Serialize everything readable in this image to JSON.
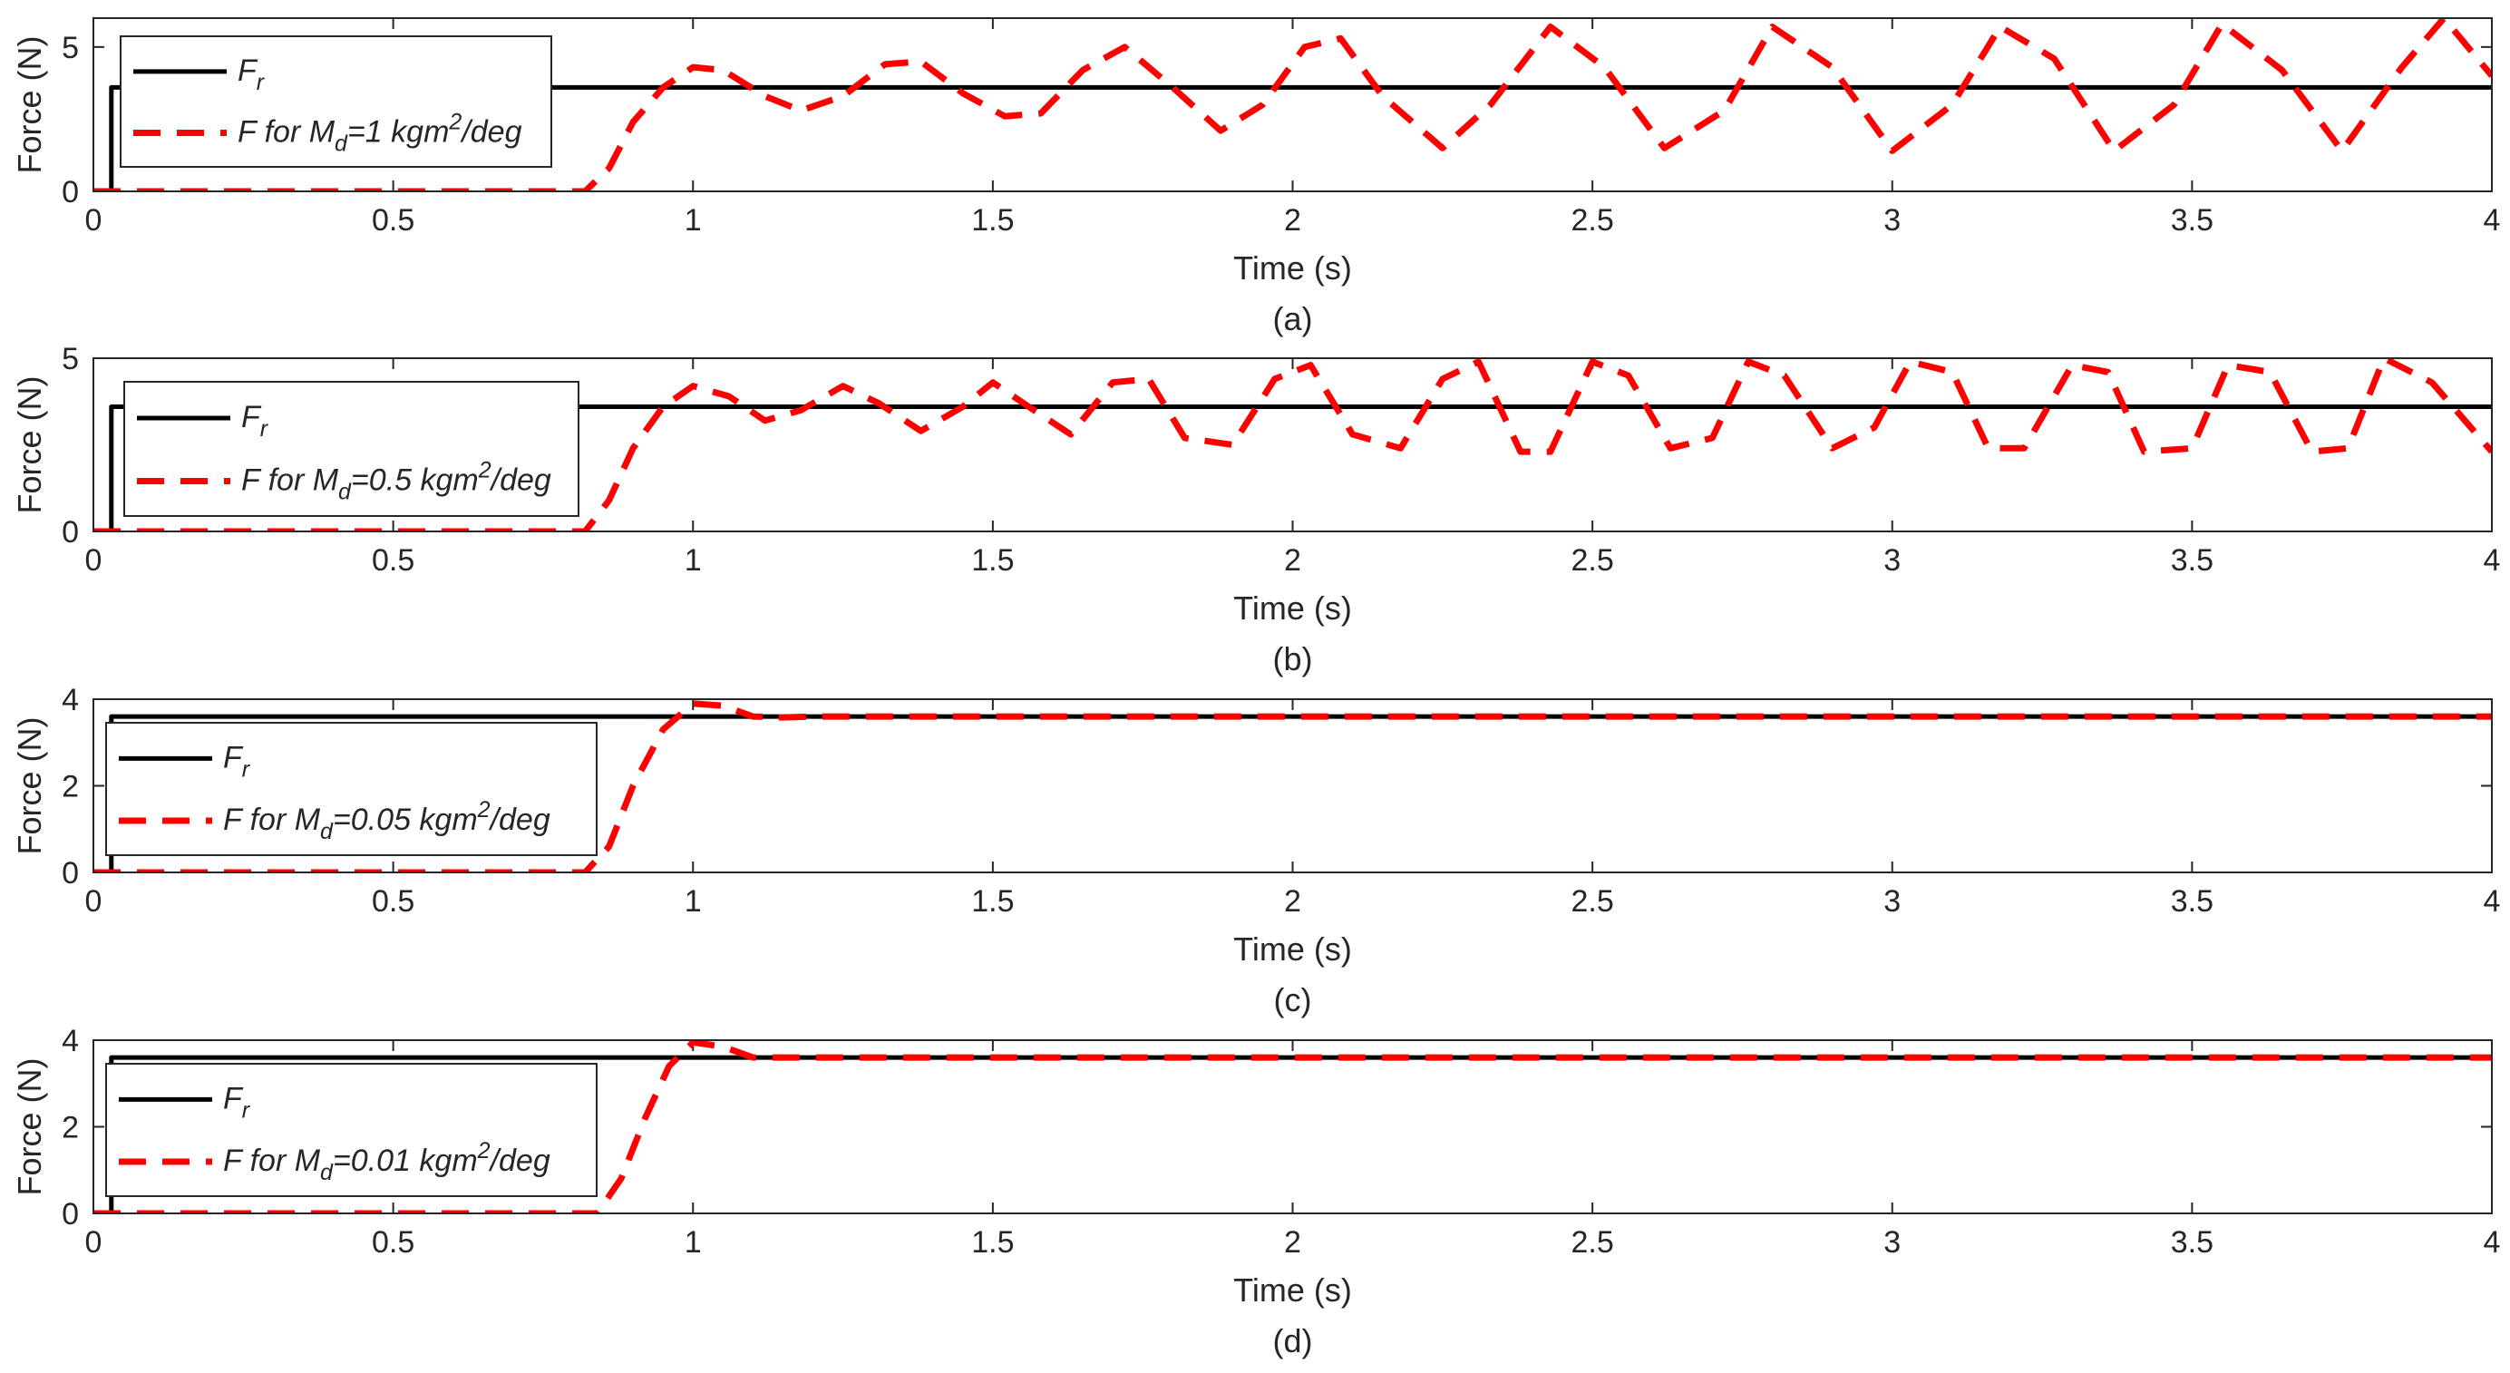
{
  "chart_data": [
    {
      "type": "line",
      "caption": "(a)",
      "xlabel": "Time (s)",
      "ylabel": "Force (N)",
      "xlim": [
        0,
        4
      ],
      "ylim": [
        0,
        6
      ],
      "xticks": [
        0,
        0.5,
        1,
        1.5,
        2,
        2.5,
        3,
        3.5,
        4
      ],
      "xtick_labels": [
        "0",
        "0.5",
        "1",
        "1.5",
        "2",
        "2.5",
        "3",
        "3.5",
        "4"
      ],
      "yticks": [
        0,
        5
      ],
      "ytick_labels": [
        "0",
        "5"
      ],
      "legend_position": "top-left",
      "series": [
        {
          "legend": {
            "main": "F",
            "sub": "r"
          },
          "style": "solid",
          "color": "#000000",
          "x": [
            0,
            0.03,
            0.03,
            4
          ],
          "y": [
            0,
            0,
            3.6,
            3.6
          ]
        },
        {
          "legend": {
            "pre": "F for M",
            "sub": "d",
            "mid": "=1 kgm",
            "sup": "2",
            "post": "/deg"
          },
          "style": "dashed",
          "color": "#ff0000",
          "x": [
            0,
            0.82,
            0.86,
            0.9,
            0.95,
            1.0,
            1.05,
            1.12,
            1.18,
            1.25,
            1.32,
            1.38,
            1.45,
            1.52,
            1.58,
            1.65,
            1.72,
            1.8,
            1.88,
            1.95,
            2.02,
            2.08,
            2.15,
            2.25,
            2.33,
            2.43,
            2.52,
            2.62,
            2.72,
            2.8,
            2.9,
            3.0,
            3.1,
            3.18,
            3.27,
            3.37,
            3.47,
            3.55,
            3.65,
            3.75,
            3.85,
            3.92,
            4.0
          ],
          "y": [
            0,
            0,
            0.8,
            2.4,
            3.6,
            4.3,
            4.2,
            3.3,
            2.8,
            3.3,
            4.4,
            4.5,
            3.4,
            2.6,
            2.7,
            4.2,
            5.0,
            3.6,
            2.1,
            3.0,
            5.0,
            5.3,
            3.3,
            1.5,
            3.0,
            5.7,
            4.3,
            1.5,
            2.8,
            5.7,
            4.3,
            1.4,
            3.0,
            5.7,
            4.6,
            1.4,
            3.0,
            5.8,
            4.2,
            1.4,
            4.3,
            6.0,
            4.0
          ]
        }
      ]
    },
    {
      "type": "line",
      "caption": "(b)",
      "xlabel": "Time (s)",
      "ylabel": "Force (N)",
      "xlim": [
        0,
        4
      ],
      "ylim": [
        0,
        5
      ],
      "xticks": [
        0,
        0.5,
        1,
        1.5,
        2,
        2.5,
        3,
        3.5,
        4
      ],
      "xtick_labels": [
        "0",
        "0.5",
        "1",
        "1.5",
        "2",
        "2.5",
        "3",
        "3.5",
        "4"
      ],
      "yticks": [
        0,
        5
      ],
      "ytick_labels": [
        "0",
        "5"
      ],
      "legend_position": "top-left",
      "series": [
        {
          "legend": {
            "main": "F",
            "sub": "r"
          },
          "style": "solid",
          "color": "#000000",
          "x": [
            0,
            0.03,
            0.03,
            4
          ],
          "y": [
            0,
            0,
            3.6,
            3.6
          ]
        },
        {
          "legend": {
            "pre": "F for M",
            "sub": "d",
            "mid": "=0.5 kgm",
            "sup": "2",
            "post": "/deg"
          },
          "style": "dashed",
          "color": "#ff0000",
          "x": [
            0,
            0.82,
            0.86,
            0.9,
            0.95,
            1.0,
            1.06,
            1.12,
            1.18,
            1.25,
            1.31,
            1.38,
            1.45,
            1.5,
            1.56,
            1.63,
            1.7,
            1.76,
            1.82,
            1.9,
            1.97,
            2.03,
            2.1,
            2.18,
            2.25,
            2.31,
            2.38,
            2.43,
            2.5,
            2.56,
            2.63,
            2.7,
            2.76,
            2.82,
            2.9,
            2.97,
            3.03,
            3.1,
            3.16,
            3.22,
            3.3,
            3.36,
            3.42,
            3.5,
            3.56,
            3.63,
            3.7,
            3.76,
            3.82,
            3.9,
            4.0
          ],
          "y": [
            0,
            0,
            0.9,
            2.4,
            3.6,
            4.2,
            3.9,
            3.2,
            3.5,
            4.2,
            3.7,
            2.9,
            3.6,
            4.3,
            3.6,
            2.8,
            4.3,
            4.4,
            2.7,
            2.5,
            4.4,
            4.8,
            2.8,
            2.4,
            4.4,
            4.9,
            2.3,
            2.3,
            4.9,
            4.5,
            2.4,
            2.7,
            4.9,
            4.5,
            2.4,
            3.0,
            4.9,
            4.6,
            2.4,
            2.4,
            4.8,
            4.6,
            2.3,
            2.4,
            4.8,
            4.6,
            2.3,
            2.4,
            5.0,
            4.3,
            2.3
          ]
        }
      ]
    },
    {
      "type": "line",
      "caption": "(c)",
      "xlabel": "Time (s)",
      "ylabel": "Force (N)",
      "xlim": [
        0,
        4
      ],
      "ylim": [
        0,
        4
      ],
      "xticks": [
        0,
        0.5,
        1,
        1.5,
        2,
        2.5,
        3,
        3.5,
        4
      ],
      "xtick_labels": [
        "0",
        "0.5",
        "1",
        "1.5",
        "2",
        "2.5",
        "3",
        "3.5",
        "4"
      ],
      "yticks": [
        0,
        2,
        4
      ],
      "ytick_labels": [
        "0",
        "2",
        "4"
      ],
      "legend_position": "middle-left",
      "series": [
        {
          "legend": {
            "main": "F",
            "sub": "r"
          },
          "style": "solid",
          "color": "#000000",
          "x": [
            0,
            0.03,
            0.03,
            4
          ],
          "y": [
            0,
            0,
            3.6,
            3.6
          ]
        },
        {
          "legend": {
            "pre": "F for M",
            "sub": "d",
            "mid": "=0.05 kgm",
            "sup": "2",
            "post": "/deg"
          },
          "style": "dashed",
          "color": "#ff0000",
          "x": [
            0,
            0.82,
            0.86,
            0.9,
            0.95,
            1.0,
            1.05,
            1.1,
            1.15,
            1.2,
            4.0
          ],
          "y": [
            0,
            0,
            0.6,
            2.0,
            3.3,
            3.9,
            3.85,
            3.6,
            3.58,
            3.6,
            3.6
          ]
        }
      ]
    },
    {
      "type": "line",
      "caption": "(d)",
      "xlabel": "Time (s)",
      "ylabel": "Force (N)",
      "xlim": [
        0,
        4
      ],
      "ylim": [
        0,
        4
      ],
      "xticks": [
        0,
        0.5,
        1,
        1.5,
        2,
        2.5,
        3,
        3.5,
        4
      ],
      "xtick_labels": [
        "0",
        "0.5",
        "1",
        "1.5",
        "2",
        "2.5",
        "3",
        "3.5",
        "4"
      ],
      "yticks": [
        0,
        2,
        4
      ],
      "ytick_labels": [
        "0",
        "2",
        "4"
      ],
      "legend_position": "middle-left",
      "series": [
        {
          "legend": {
            "main": "F",
            "sub": "r"
          },
          "style": "solid",
          "color": "#000000",
          "x": [
            0,
            0.03,
            0.03,
            4
          ],
          "y": [
            0,
            0,
            3.6,
            3.6
          ]
        },
        {
          "legend": {
            "pre": "F for M",
            "sub": "d",
            "mid": "=0.01 kgm",
            "sup": "2",
            "post": "/deg"
          },
          "style": "dashed",
          "color": "#ff0000",
          "x": [
            0,
            0.84,
            0.88,
            0.92,
            0.96,
            1.0,
            1.05,
            1.1,
            1.15,
            4.0
          ],
          "y": [
            0,
            0,
            0.8,
            2.2,
            3.4,
            3.95,
            3.85,
            3.6,
            3.6,
            3.6
          ]
        }
      ]
    }
  ]
}
